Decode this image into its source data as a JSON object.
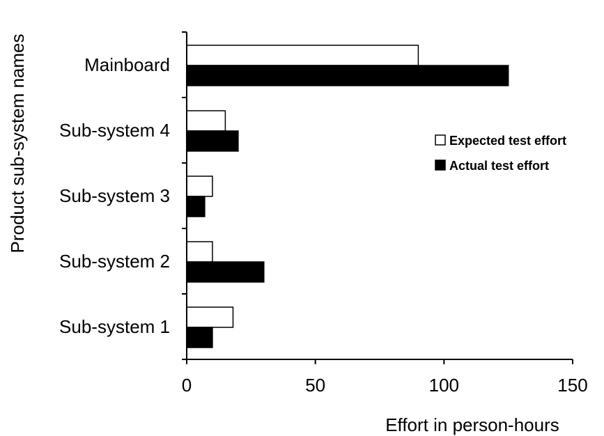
{
  "chart_data": {
    "type": "bar",
    "orientation": "horizontal",
    "categories": [
      "Sub-system 1",
      "Sub-system 2",
      "Sub-system 3",
      "Sub-system 4",
      "Mainboard"
    ],
    "series": [
      {
        "name": "Expected test effort",
        "color": "#ffffff",
        "values": [
          18,
          10,
          10,
          15,
          90
        ]
      },
      {
        "name": "Actual test effort",
        "color": "#000000",
        "values": [
          10,
          30,
          7,
          20,
          125
        ]
      }
    ],
    "xlabel": "Effort in person-hours",
    "ylabel": "Product sub-system names",
    "xlim": [
      0,
      150
    ],
    "xticks": [
      0,
      50,
      100,
      150
    ],
    "grid": false,
    "legend_position": "right"
  }
}
